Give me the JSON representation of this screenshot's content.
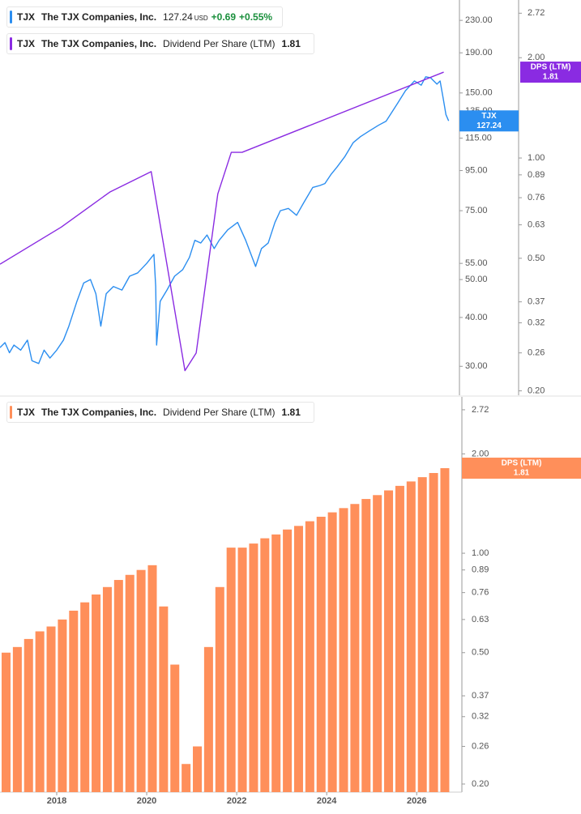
{
  "chart_data": [
    {
      "type": "line",
      "log_scale": true,
      "xlim": [
        2016.74,
        2026.95
      ],
      "ylim": [
        25.3,
        259.3
      ],
      "yticks": [
        {
          "value": 230,
          "label": "230.00"
        },
        {
          "value": 190,
          "label": "190.00"
        },
        {
          "value": 150,
          "label": "150.00"
        },
        {
          "value": 135,
          "label": "135.00"
        },
        {
          "value": 115,
          "label": "115.00"
        },
        {
          "value": 95,
          "label": "95.00"
        },
        {
          "value": 75,
          "label": "75.00"
        },
        {
          "value": 55,
          "label": "55.00"
        },
        {
          "value": 50,
          "label": "50.00"
        },
        {
          "value": 40,
          "label": "40.00"
        },
        {
          "value": 30,
          "label": "30.00"
        }
      ],
      "y2lim": [
        0.194,
        2.98
      ],
      "y2ticks": [
        2.72,
        {
          "value": 2,
          "label": "2.00"
        },
        {
          "value": 1,
          "label": "1.00"
        },
        0.89,
        0.76,
        0.63,
        {
          "value": 0.5,
          "label": "0.50"
        },
        0.37,
        0.32,
        0.26,
        {
          "value": 0.2,
          "label": "0.20"
        }
      ],
      "legend": {
        "ticker": "TJX",
        "company": "The TJX Companies, Inc.",
        "currency": "USD",
        "change": "+0.69",
        "change_pct": "+0.55%"
      },
      "series": [
        {
          "name": "TJX",
          "color": "#2b8ef0",
          "x": [
            2016.74,
            2016.85,
            2016.95,
            2017.05,
            2017.2,
            2017.35,
            2017.45,
            2017.6,
            2017.72,
            2017.85,
            2018.0,
            2018.15,
            2018.27,
            2018.45,
            2018.6,
            2018.75,
            2018.87,
            2018.98,
            2019.1,
            2019.26,
            2019.45,
            2019.62,
            2019.8,
            2020.0,
            2020.16,
            2020.2,
            2020.22,
            2020.3,
            2020.45,
            2020.62,
            2020.8,
            2020.95,
            2021.07,
            2021.2,
            2021.34,
            2021.5,
            2021.61,
            2021.8,
            2022.02,
            2022.2,
            2022.42,
            2022.55,
            2022.7,
            2022.85,
            2022.97,
            2023.15,
            2023.33,
            2023.5,
            2023.69,
            2023.85,
            2023.96,
            2024.1,
            2024.23,
            2024.4,
            2024.59,
            2024.75,
            2024.95,
            2025.15,
            2025.32,
            2025.45,
            2025.59,
            2025.75,
            2025.95,
            2026.1,
            2026.2,
            2026.31,
            2026.45,
            2026.52,
            2026.59,
            2026.65,
            2026.71
          ],
          "values": [
            33.5,
            34.5,
            32.5,
            34,
            33,
            35,
            31,
            30.5,
            33,
            31.5,
            33,
            35,
            38,
            44,
            49,
            50,
            46,
            38,
            46,
            48,
            47,
            51,
            52,
            55,
            58,
            48,
            34,
            44,
            47,
            51,
            53,
            57,
            63,
            62,
            65,
            60,
            63,
            67,
            70,
            63,
            54,
            60,
            62,
            70,
            75,
            76,
            73,
            79,
            86,
            87,
            88,
            93,
            97,
            103,
            112,
            116,
            120,
            124,
            127,
            134,
            142,
            152,
            161,
            157,
            165,
            164,
            158,
            161,
            145,
            132,
            127.24
          ]
        },
        {
          "name": "Dividend Per Share (LTM)",
          "label": "DPS (LTM)",
          "color": "#8a2be2",
          "axis": "y2",
          "x": [
            2016.74,
            2018.1,
            2019.18,
            2020.1,
            2020.85,
            2021.1,
            2021.58,
            2021.88,
            2022.12,
            2026.6
          ],
          "values": [
            0.48,
            0.62,
            0.79,
            0.91,
            0.23,
            0.26,
            0.78,
            1.04,
            1.04,
            1.81
          ]
        }
      ]
    },
    {
      "type": "bar",
      "log_scale": true,
      "xlim": [
        2016.74,
        2026.95
      ],
      "xticks": [
        2018,
        2020,
        2022,
        2024,
        2026
      ],
      "ylim": [
        0.189,
        2.976
      ],
      "yticks": [
        2.72,
        {
          "value": 2,
          "label": "2.00"
        },
        {
          "value": 1,
          "label": "1.00"
        },
        0.89,
        0.76,
        0.63,
        {
          "value": 0.5,
          "label": "0.50"
        },
        0.37,
        0.32,
        0.26,
        {
          "value": 0.2,
          "label": "0.20"
        }
      ],
      "legend": {
        "ticker": "TJX",
        "company": "The TJX Companies, Inc."
      },
      "series": [
        {
          "name": "Dividend Per Share (LTM)",
          "label": "DPS (LTM)",
          "color": "#ff8f5a",
          "x": [
            2016.875,
            2017.125,
            2017.375,
            2017.625,
            2017.875,
            2018.125,
            2018.375,
            2018.625,
            2018.875,
            2019.125,
            2019.375,
            2019.625,
            2019.875,
            2020.125,
            2020.375,
            2020.625,
            2020.875,
            2021.125,
            2021.375,
            2021.625,
            2021.875,
            2022.125,
            2022.375,
            2022.625,
            2022.875,
            2023.125,
            2023.375,
            2023.625,
            2023.875,
            2024.125,
            2024.375,
            2024.625,
            2024.875,
            2025.125,
            2025.375,
            2025.625,
            2025.875,
            2026.125,
            2026.375,
            2026.625
          ],
          "values": [
            0.5,
            0.52,
            0.55,
            0.58,
            0.6,
            0.63,
            0.67,
            0.71,
            0.75,
            0.79,
            0.83,
            0.86,
            0.89,
            0.92,
            0.69,
            0.46,
            0.23,
            0.26,
            0.52,
            0.79,
            1.04,
            1.04,
            1.07,
            1.11,
            1.14,
            1.18,
            1.21,
            1.25,
            1.29,
            1.33,
            1.37,
            1.41,
            1.46,
            1.5,
            1.55,
            1.6,
            1.65,
            1.7,
            1.75,
            1.81
          ]
        }
      ]
    }
  ]
}
